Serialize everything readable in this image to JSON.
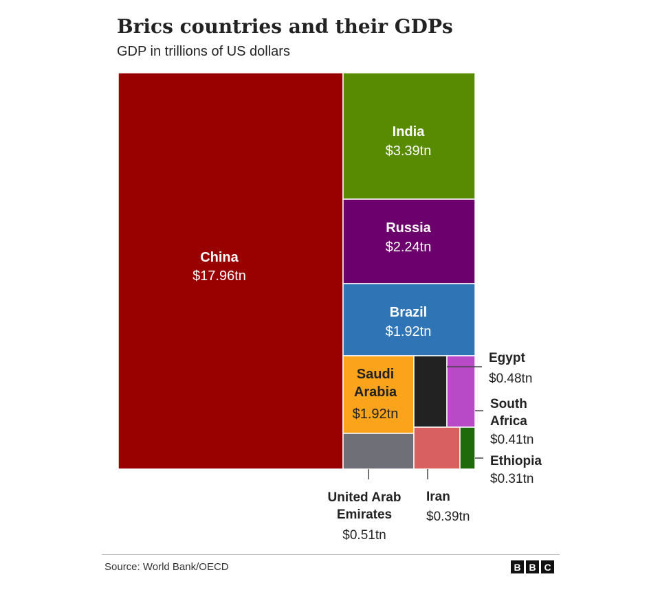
{
  "header": {
    "title": "Brics countries and their GDPs",
    "subtitle": "GDP in trillions of US dollars"
  },
  "footer": {
    "source": "Source: World Bank/OECD",
    "logo_letters": [
      "B",
      "B",
      "C"
    ]
  },
  "chart_data": {
    "type": "treemap",
    "unit": "trillions of US dollars",
    "title": "Brics countries and their GDPs",
    "subtitle": "GDP in trillions of US dollars",
    "items": [
      {
        "name": "China",
        "name_lines": [
          "China"
        ],
        "value": 17.96,
        "value_label": "$17.96tn",
        "color": "#990000"
      },
      {
        "name": "India",
        "name_lines": [
          "India"
        ],
        "value": 3.39,
        "value_label": "$3.39tn",
        "color": "#588a02"
      },
      {
        "name": "Russia",
        "name_lines": [
          "Russia"
        ],
        "value": 2.24,
        "value_label": "$2.24tn",
        "color": "#6c006c"
      },
      {
        "name": "Brazil",
        "name_lines": [
          "Brazil"
        ],
        "value": 1.92,
        "value_label": "$1.92tn",
        "color": "#2f74b5"
      },
      {
        "name": "Saudi Arabia",
        "name_lines": [
          "Saudi",
          "Arabia"
        ],
        "value": 1.92,
        "value_label": "$1.92tn",
        "color": "#fba31b"
      },
      {
        "name": "Egypt",
        "name_lines": [
          "Egypt"
        ],
        "value": 0.48,
        "value_label": "$0.48tn",
        "color": "#222222"
      },
      {
        "name": "South Africa",
        "name_lines": [
          "South",
          "Africa"
        ],
        "value": 0.41,
        "value_label": "$0.41tn",
        "color": "#b84ac8"
      },
      {
        "name": "United Arab Emirates",
        "name_lines": [
          "United Arab",
          "Emirates"
        ],
        "value": 0.51,
        "value_label": "$0.51tn",
        "color": "#6f6f78"
      },
      {
        "name": "Iran",
        "name_lines": [
          "Iran"
        ],
        "value": 0.39,
        "value_label": "$0.39tn",
        "color": "#d96060"
      },
      {
        "name": "Ethiopia",
        "name_lines": [
          "Ethiopia"
        ],
        "value": 0.31,
        "value_label": "$0.31tn",
        "color": "#1f6b0c"
      }
    ]
  }
}
